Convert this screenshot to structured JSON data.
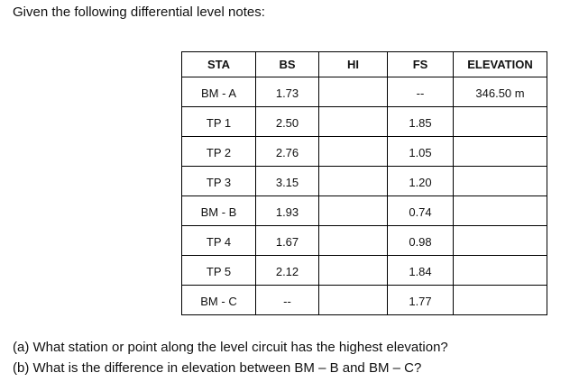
{
  "intro": "Given the following differential level notes:",
  "table": {
    "headers": [
      "STA",
      "BS",
      "HI",
      "FS",
      "ELEVATION"
    ],
    "rows": [
      {
        "sta": "BM - A",
        "bs": "1.73",
        "fs": "--",
        "elevation": "346.50 m"
      },
      {
        "sta": "TP 1",
        "bs": "2.50",
        "fs": "1.85"
      },
      {
        "sta": "TP 2",
        "bs": "2.76",
        "fs": "1.05"
      },
      {
        "sta": "TP 3",
        "bs": "3.15",
        "fs": "1.20"
      },
      {
        "sta": "BM - B",
        "bs": "1.93",
        "fs": "0.74"
      },
      {
        "sta": "TP 4",
        "bs": "1.67",
        "fs": "0.98"
      },
      {
        "sta": "TP 5",
        "bs": "2.12",
        "fs": "1.84"
      },
      {
        "sta": "BM - C",
        "bs": "--",
        "fs": "1.77"
      }
    ]
  },
  "questions": [
    "(a)  What station or point along the level circuit has the highest elevation?",
    "(b)  What is the difference in elevation between BM – B and BM – C?"
  ]
}
